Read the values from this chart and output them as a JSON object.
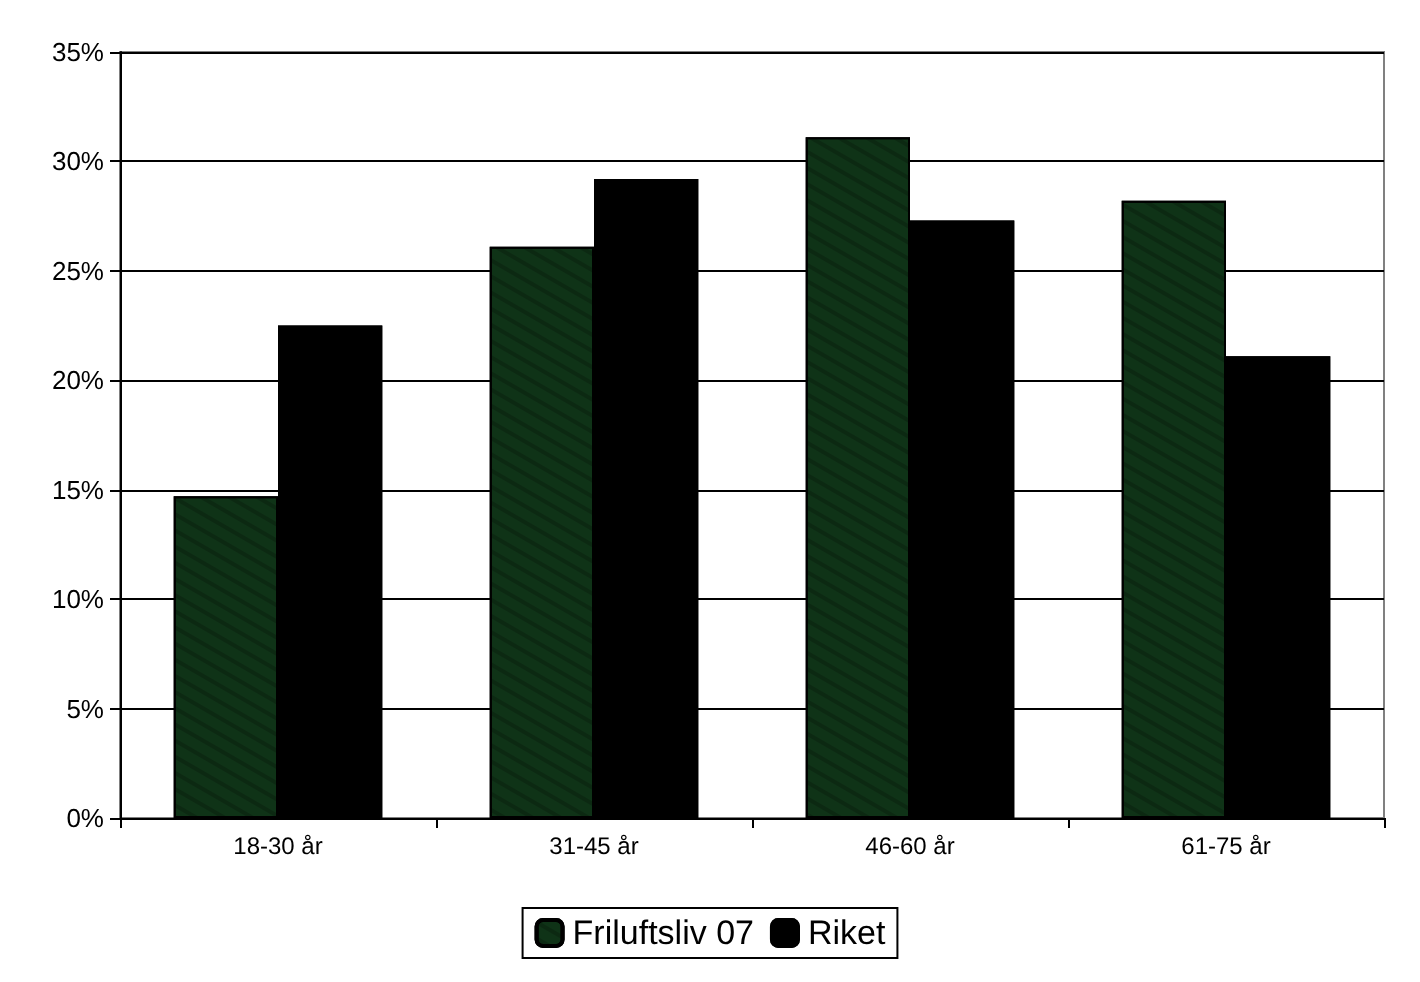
{
  "chart_data": {
    "type": "bar",
    "categories": [
      "18-30 år",
      "31-45 år",
      "46-60 år",
      "61-75 år"
    ],
    "series": [
      {
        "name": "Friluftsliv 07",
        "color": "#0f3317",
        "values": [
          14.7,
          26.1,
          31.1,
          28.2
        ]
      },
      {
        "name": "Riket",
        "color": "#000000",
        "values": [
          22.5,
          29.2,
          27.3,
          21.1
        ]
      }
    ],
    "ylim": [
      0,
      35
    ],
    "yticks": [
      {
        "value": 0,
        "label": "0%"
      },
      {
        "value": 5,
        "label": "5%"
      },
      {
        "value": 10,
        "label": "10%"
      },
      {
        "value": 15,
        "label": "15%"
      },
      {
        "value": 20,
        "label": "20%"
      },
      {
        "value": 25,
        "label": "25%"
      },
      {
        "value": 30,
        "label": "30%"
      },
      {
        "value": 35,
        "label": "35%"
      }
    ],
    "grid": "y",
    "legend": "bottom"
  }
}
